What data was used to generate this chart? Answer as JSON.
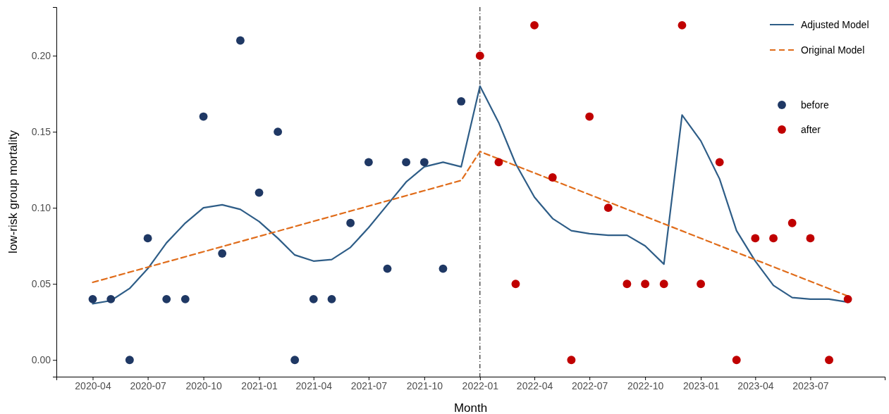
{
  "chart_data": {
    "type": "scatter",
    "xlabel": "Month",
    "ylabel": "low-risk group mortality",
    "xlim": [
      "2020-02",
      "2023-11"
    ],
    "ylim": [
      -0.011,
      0.232
    ],
    "xticks": [
      "2020-04",
      "2020-07",
      "2020-10",
      "2021-01",
      "2021-04",
      "2021-07",
      "2021-10",
      "2022-01",
      "2022-04",
      "2022-07",
      "2022-10",
      "2023-01",
      "2023-04",
      "2023-07"
    ],
    "yticks": [
      {
        "value": 0,
        "label": "0.00"
      },
      {
        "value": 0.05,
        "label": "0.05"
      },
      {
        "value": 0.1,
        "label": "0.10"
      },
      {
        "value": 0.15,
        "label": "0.15"
      },
      {
        "value": 0.2,
        "label": "0.20"
      }
    ],
    "grid": false,
    "legend": "top right",
    "ref_lines": [
      {
        "axis": "x",
        "value": "2022-01",
        "color": "#000000",
        "line_style": "dashdot"
      }
    ],
    "series": [
      {
        "name": "Adjusted Model",
        "type": "line",
        "color": "#2e5d87",
        "line_style": "solid",
        "x": [
          "2020-04",
          "2020-05",
          "2020-06",
          "2020-07",
          "2020-08",
          "2020-09",
          "2020-10",
          "2020-11",
          "2020-12",
          "2021-01",
          "2021-02",
          "2021-03",
          "2021-04",
          "2021-05",
          "2021-06",
          "2021-07",
          "2021-08",
          "2021-09",
          "2021-10",
          "2021-11",
          "2021-12",
          "2022-01",
          "2022-02",
          "2022-03",
          "2022-04",
          "2022-05",
          "2022-06",
          "2022-07",
          "2022-08",
          "2022-09",
          "2022-10",
          "2022-11",
          "2022-12",
          "2023-01",
          "2023-02",
          "2023-03",
          "2023-04",
          "2023-05",
          "2023-06",
          "2023-07",
          "2023-08",
          "2023-09"
        ],
        "values": [
          0.037,
          0.039,
          0.047,
          0.06,
          0.077,
          0.09,
          0.1,
          0.102,
          0.099,
          0.091,
          0.08,
          0.069,
          0.065,
          0.066,
          0.074,
          0.087,
          0.102,
          0.117,
          0.127,
          0.13,
          0.127,
          0.18,
          0.156,
          0.129,
          0.107,
          0.093,
          0.085,
          0.083,
          0.082,
          0.082,
          0.075,
          0.063,
          0.161,
          0.144,
          0.119,
          0.085,
          0.065,
          0.049,
          0.041,
          0.04,
          0.04,
          0.038
        ]
      },
      {
        "name": "Original Model",
        "type": "line",
        "color": "#e06c1a",
        "line_style": "dashed",
        "x": [
          "2020-04",
          "2021-12",
          "2022-01",
          "2023-09"
        ],
        "values": [
          0.051,
          0.118,
          0.137,
          0.042
        ]
      },
      {
        "name": "before",
        "color": "#1f3864",
        "marker": "circle",
        "x": [
          "2020-04",
          "2020-05",
          "2020-06",
          "2020-07",
          "2020-08",
          "2020-09",
          "2020-10",
          "2020-11",
          "2020-12",
          "2021-01",
          "2021-02",
          "2021-03",
          "2021-04",
          "2021-05",
          "2021-06",
          "2021-07",
          "2021-08",
          "2021-09",
          "2021-10",
          "2021-11",
          "2021-12"
        ],
        "values": [
          0.04,
          0.04,
          0,
          0.08,
          0.04,
          0.04,
          0.16,
          0.07,
          0.21,
          0.11,
          0.15,
          0,
          0.04,
          0.04,
          0.09,
          0.13,
          0.06,
          0.13,
          0.13,
          0.06,
          0.17
        ]
      },
      {
        "name": "after",
        "color": "#c00000",
        "marker": "circle",
        "x": [
          "2022-01",
          "2022-02",
          "2022-03",
          "2022-04",
          "2022-05",
          "2022-06",
          "2022-07",
          "2022-08",
          "2022-09",
          "2022-10",
          "2022-11",
          "2022-12",
          "2023-01",
          "2023-02",
          "2023-03",
          "2023-04",
          "2023-05",
          "2023-06",
          "2023-07",
          "2023-08",
          "2023-09"
        ],
        "values": [
          0.2,
          0.13,
          0.05,
          0.22,
          0.12,
          0,
          0.16,
          0.1,
          0.05,
          0.05,
          0.05,
          0.22,
          0.05,
          0.13,
          0,
          0.08,
          0.08,
          0.09,
          0.08,
          0,
          0.04
        ]
      }
    ]
  }
}
